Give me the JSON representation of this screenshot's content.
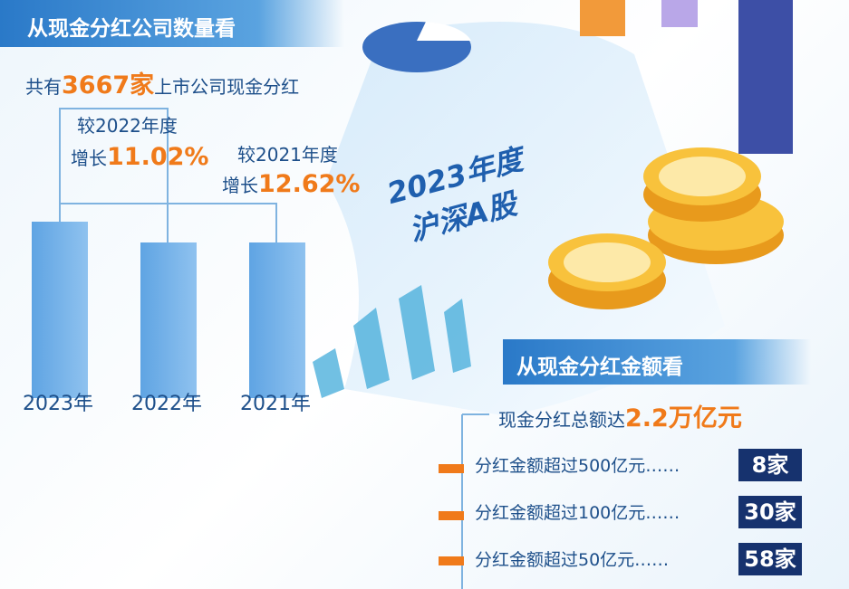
{
  "count_section": {
    "title": "从现金分红公司数量看",
    "total": {
      "prefix": "共有",
      "number": "3667家",
      "suffix": "上市公司现金分红"
    },
    "growth_2022": {
      "label": "较2022年度",
      "prefix": "增长",
      "number": "11.02%"
    },
    "growth_2021": {
      "label": "较2021年度",
      "prefix": "增长",
      "number": "12.62%"
    },
    "years": [
      "2023年",
      "2022年",
      "2021年"
    ]
  },
  "center": {
    "line1": "2023年度",
    "line2": "沪深A股"
  },
  "amount_section": {
    "title": "从现金分红金额看",
    "total": {
      "prefix": "现金分红总额达",
      "number": "2.2万亿元"
    },
    "rows": [
      {
        "label": "分红金额超过500亿元……",
        "count": "8家"
      },
      {
        "label": "分红金额超过100亿元……",
        "count": "30家"
      },
      {
        "label": "分红金额超过50亿元……",
        "count": "58家"
      }
    ]
  }
}
